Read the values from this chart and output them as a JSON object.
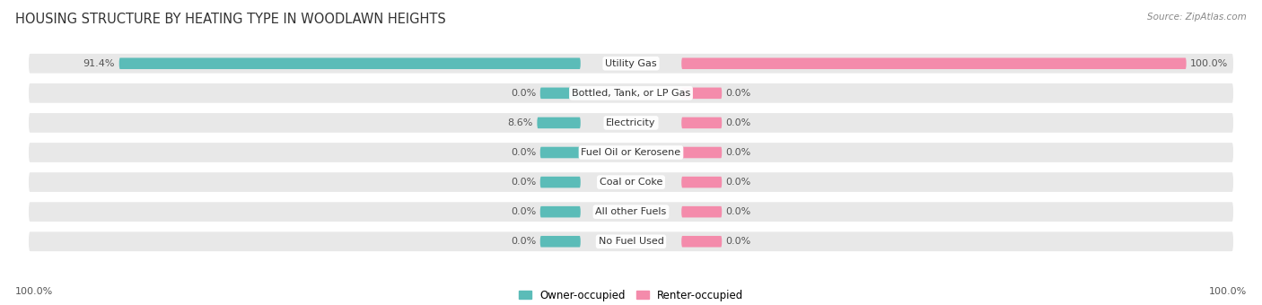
{
  "title": "HOUSING STRUCTURE BY HEATING TYPE IN WOODLAWN HEIGHTS",
  "source": "Source: ZipAtlas.com",
  "categories": [
    "Utility Gas",
    "Bottled, Tank, or LP Gas",
    "Electricity",
    "Fuel Oil or Kerosene",
    "Coal or Coke",
    "All other Fuels",
    "No Fuel Used"
  ],
  "owner_values": [
    91.4,
    0.0,
    8.6,
    0.0,
    0.0,
    0.0,
    0.0
  ],
  "renter_values": [
    100.0,
    0.0,
    0.0,
    0.0,
    0.0,
    0.0,
    0.0
  ],
  "owner_color": "#5bbcb8",
  "renter_color": "#f48bab",
  "bg_row_color": "#e8e8e8",
  "title_fontsize": 10.5,
  "label_fontsize": 8,
  "category_fontsize": 8,
  "legend_fontsize": 8.5,
  "axis_label_fontsize": 8,
  "left_axis_label": "100.0%",
  "right_axis_label": "100.0%",
  "max_val": 100.0,
  "stub_val": 8.0
}
